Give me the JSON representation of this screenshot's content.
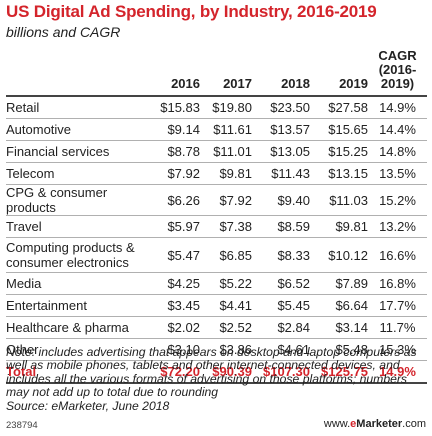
{
  "header": {
    "title": "US Digital Ad Spending, by Industry, 2016-2019",
    "subtitle": "billions and CAGR"
  },
  "table": {
    "columns": [
      "2016",
      "2017",
      "2018",
      "2019"
    ],
    "cagr_header_line1": "CAGR",
    "cagr_header_line2": "(2016-2019)",
    "rows": [
      {
        "label": "Retail",
        "values": [
          "$15.83",
          "$19.80",
          "$23.50",
          "$27.58"
        ],
        "cagr": "14.9%"
      },
      {
        "label": "Automotive",
        "values": [
          "$9.14",
          "$11.61",
          "$13.57",
          "$15.65"
        ],
        "cagr": "14.4%"
      },
      {
        "label": "Financial services",
        "values": [
          "$8.78",
          "$11.01",
          "$13.05",
          "$15.25"
        ],
        "cagr": "14.8%"
      },
      {
        "label": "Telecom",
        "values": [
          "$7.92",
          "$9.81",
          "$11.43",
          "$13.15"
        ],
        "cagr": "13.5%"
      },
      {
        "label": "CPG & consumer products",
        "values": [
          "$6.26",
          "$7.92",
          "$9.40",
          "$11.03"
        ],
        "cagr": "15.2%"
      },
      {
        "label": "Travel",
        "values": [
          "$5.97",
          "$7.38",
          "$8.59",
          "$9.81"
        ],
        "cagr": "13.2%"
      },
      {
        "label": "Computing products & consumer electronics",
        "values": [
          "$5.47",
          "$6.85",
          "$8.33",
          "$10.12"
        ],
        "cagr": "16.6%"
      },
      {
        "label": "Media",
        "values": [
          "$4.25",
          "$5.22",
          "$6.52",
          "$7.89"
        ],
        "cagr": "16.8%"
      },
      {
        "label": "Entertainment",
        "values": [
          "$3.45",
          "$4.41",
          "$5.45",
          "$6.64"
        ],
        "cagr": "17.7%"
      },
      {
        "label": "Healthcare & pharma",
        "values": [
          "$2.02",
          "$2.52",
          "$2.84",
          "$3.14"
        ],
        "cagr": "11.7%"
      },
      {
        "label": "Other",
        "values": [
          "$3.10",
          "$3.86",
          "$4.61",
          "$5.48"
        ],
        "cagr": "15.3%"
      }
    ],
    "total": {
      "label": "Total",
      "values": [
        "$72.20",
        "$90.39",
        "$107.30",
        "$125.75"
      ],
      "cagr": "14.9%"
    }
  },
  "notes": {
    "note": "Note: includes advertising that appears on desktop and laptop computers as well as mobile phones, tablets and other internet-connected devices, and includes all the various formats of advertising on those platforms; numbers may not add up to total due to rounding",
    "source": "Source: eMarketer, June 2018"
  },
  "footer": {
    "id": "238794",
    "brand_prefix": "www.",
    "brand_e": "e",
    "brand_main": "Marketer",
    "brand_suffix": ".com"
  },
  "colors": {
    "accent": "#d4242b",
    "text": "#222222",
    "rule": "#b0b0b0"
  },
  "chart_data": {
    "type": "table",
    "title": "US Digital Ad Spending, by Industry, 2016-2019",
    "subtitle": "billions and CAGR",
    "columns": [
      "2016",
      "2017",
      "2018",
      "2019",
      "CAGR (2016-2019)"
    ],
    "categories": [
      "Retail",
      "Automotive",
      "Financial services",
      "Telecom",
      "CPG & consumer products",
      "Travel",
      "Computing products & consumer electronics",
      "Media",
      "Entertainment",
      "Healthcare & pharma",
      "Other",
      "Total"
    ],
    "series": [
      {
        "name": "2016",
        "values": [
          15.83,
          9.14,
          8.78,
          7.92,
          6.26,
          5.97,
          5.47,
          4.25,
          3.45,
          2.02,
          3.1,
          72.2
        ]
      },
      {
        "name": "2017",
        "values": [
          19.8,
          11.61,
          11.01,
          9.81,
          7.92,
          7.38,
          6.85,
          5.22,
          4.41,
          2.52,
          3.86,
          90.39
        ]
      },
      {
        "name": "2018",
        "values": [
          23.5,
          13.57,
          13.05,
          11.43,
          9.4,
          8.59,
          8.33,
          6.52,
          5.45,
          2.84,
          4.61,
          107.3
        ]
      },
      {
        "name": "2019",
        "values": [
          27.58,
          15.65,
          15.25,
          13.15,
          11.03,
          9.81,
          10.12,
          7.89,
          6.64,
          3.14,
          5.48,
          125.75
        ]
      },
      {
        "name": "CAGR (2016-2019)",
        "values": [
          14.9,
          14.4,
          14.8,
          13.5,
          15.2,
          13.2,
          16.6,
          16.8,
          17.7,
          11.7,
          15.3,
          14.9
        ]
      }
    ]
  }
}
